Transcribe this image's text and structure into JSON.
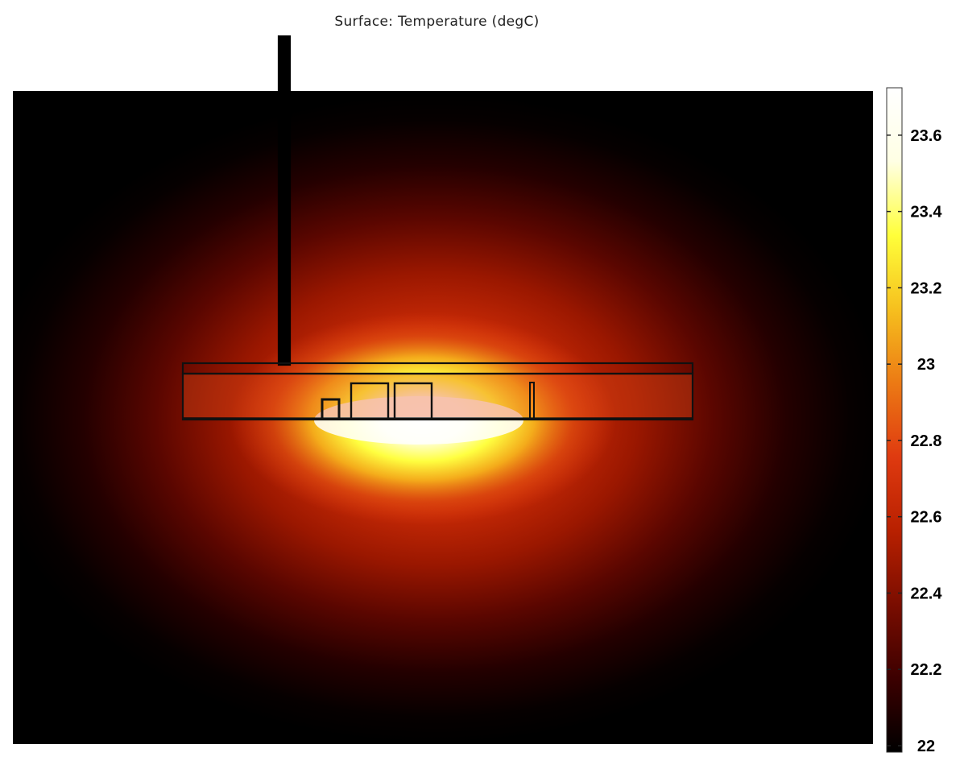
{
  "chart_data": {
    "type": "heatmap",
    "title": "Surface: Temperature (degC)",
    "quantity": "Temperature",
    "unit": "degC",
    "colormap": "heat (black-red-orange-yellow-white)",
    "colorbar": {
      "min": 22,
      "max": 23.72,
      "ticks": [
        22,
        22.2,
        22.4,
        22.6,
        22.8,
        23,
        23.2,
        23.4,
        23.6
      ],
      "tick_labels": [
        "22",
        "22.2",
        "22.4",
        "22.6",
        "22.8",
        "23",
        "23.2",
        "23.4",
        "23.6"
      ],
      "placement": "right"
    },
    "field": {
      "background_value": 22,
      "peak_value": 23.7,
      "hot_region": "below the components inside the horizontal enclosure"
    },
    "grid": false
  },
  "colors": {
    "colormap_stops": [
      "#000000",
      "#3c0000",
      "#7a0d00",
      "#b82000",
      "#df3a10",
      "#ec7a14",
      "#f6c01e",
      "#ffff3a",
      "#ffffe4",
      "#ffffff"
    ],
    "outline": "#111111"
  }
}
